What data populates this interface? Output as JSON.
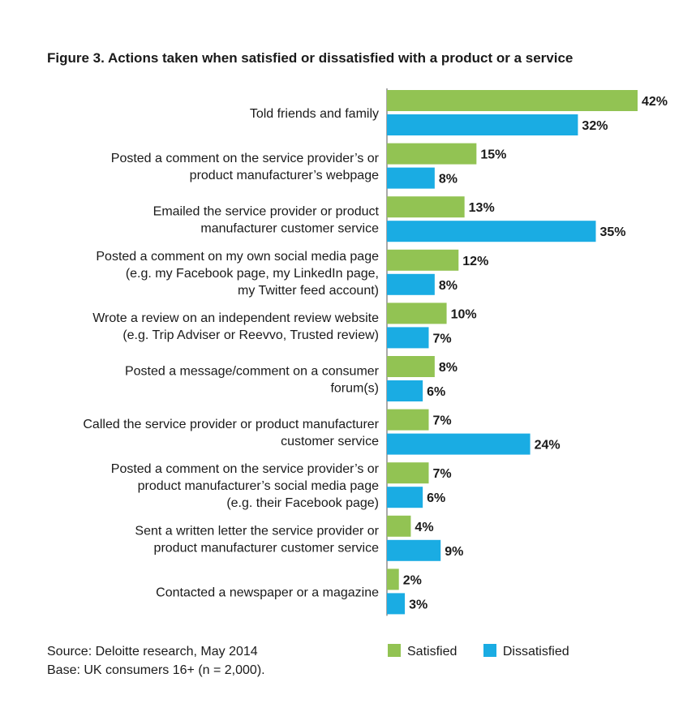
{
  "colors": {
    "satisfied": "#92c353",
    "dissatisfied": "#1aace3",
    "axis": "#555555"
  },
  "chart_data": {
    "type": "bar",
    "orientation": "horizontal",
    "title": "Figure 3. Actions taken when satisfied or dissatisfied with a product or a service",
    "value_suffix": "%",
    "xlim": [
      0,
      42
    ],
    "legend_position": "bottom",
    "categories": [
      [
        "Told friends and family"
      ],
      [
        "Posted a comment on the service provider’s or",
        "product manufacturer’s webpage"
      ],
      [
        "Emailed the service provider or product",
        "manufacturer customer service"
      ],
      [
        "Posted a comment on my own social media page",
        "(e.g. my Facebook page, my LinkedIn page,",
        "my Twitter feed account)"
      ],
      [
        "Wrote a review on an independent review website",
        "(e.g. Trip Adviser or Reevvo, Trusted review)"
      ],
      [
        "Posted a message/comment on a consumer",
        "forum(s)"
      ],
      [
        "Called the service provider or product manufacturer",
        "customer service"
      ],
      [
        "Posted a comment on the service provider’s or",
        "product manufacturer’s social media page",
        "(e.g. their Facebook page)"
      ],
      [
        "Sent a written letter the service provider or",
        "product manufacturer customer service"
      ],
      [
        "Contacted a newspaper or a magazine"
      ]
    ],
    "series": [
      {
        "name": "Satisfied",
        "values": [
          42,
          15,
          13,
          12,
          10,
          8,
          7,
          7,
          4,
          2
        ]
      },
      {
        "name": "Dissatisfied",
        "values": [
          32,
          8,
          35,
          8,
          7,
          6,
          24,
          6,
          9,
          3
        ]
      }
    ]
  },
  "footer": {
    "source": "Source: Deloitte research, May 2014",
    "base": "Base: UK consumers 16+ (n = 2,000)."
  }
}
